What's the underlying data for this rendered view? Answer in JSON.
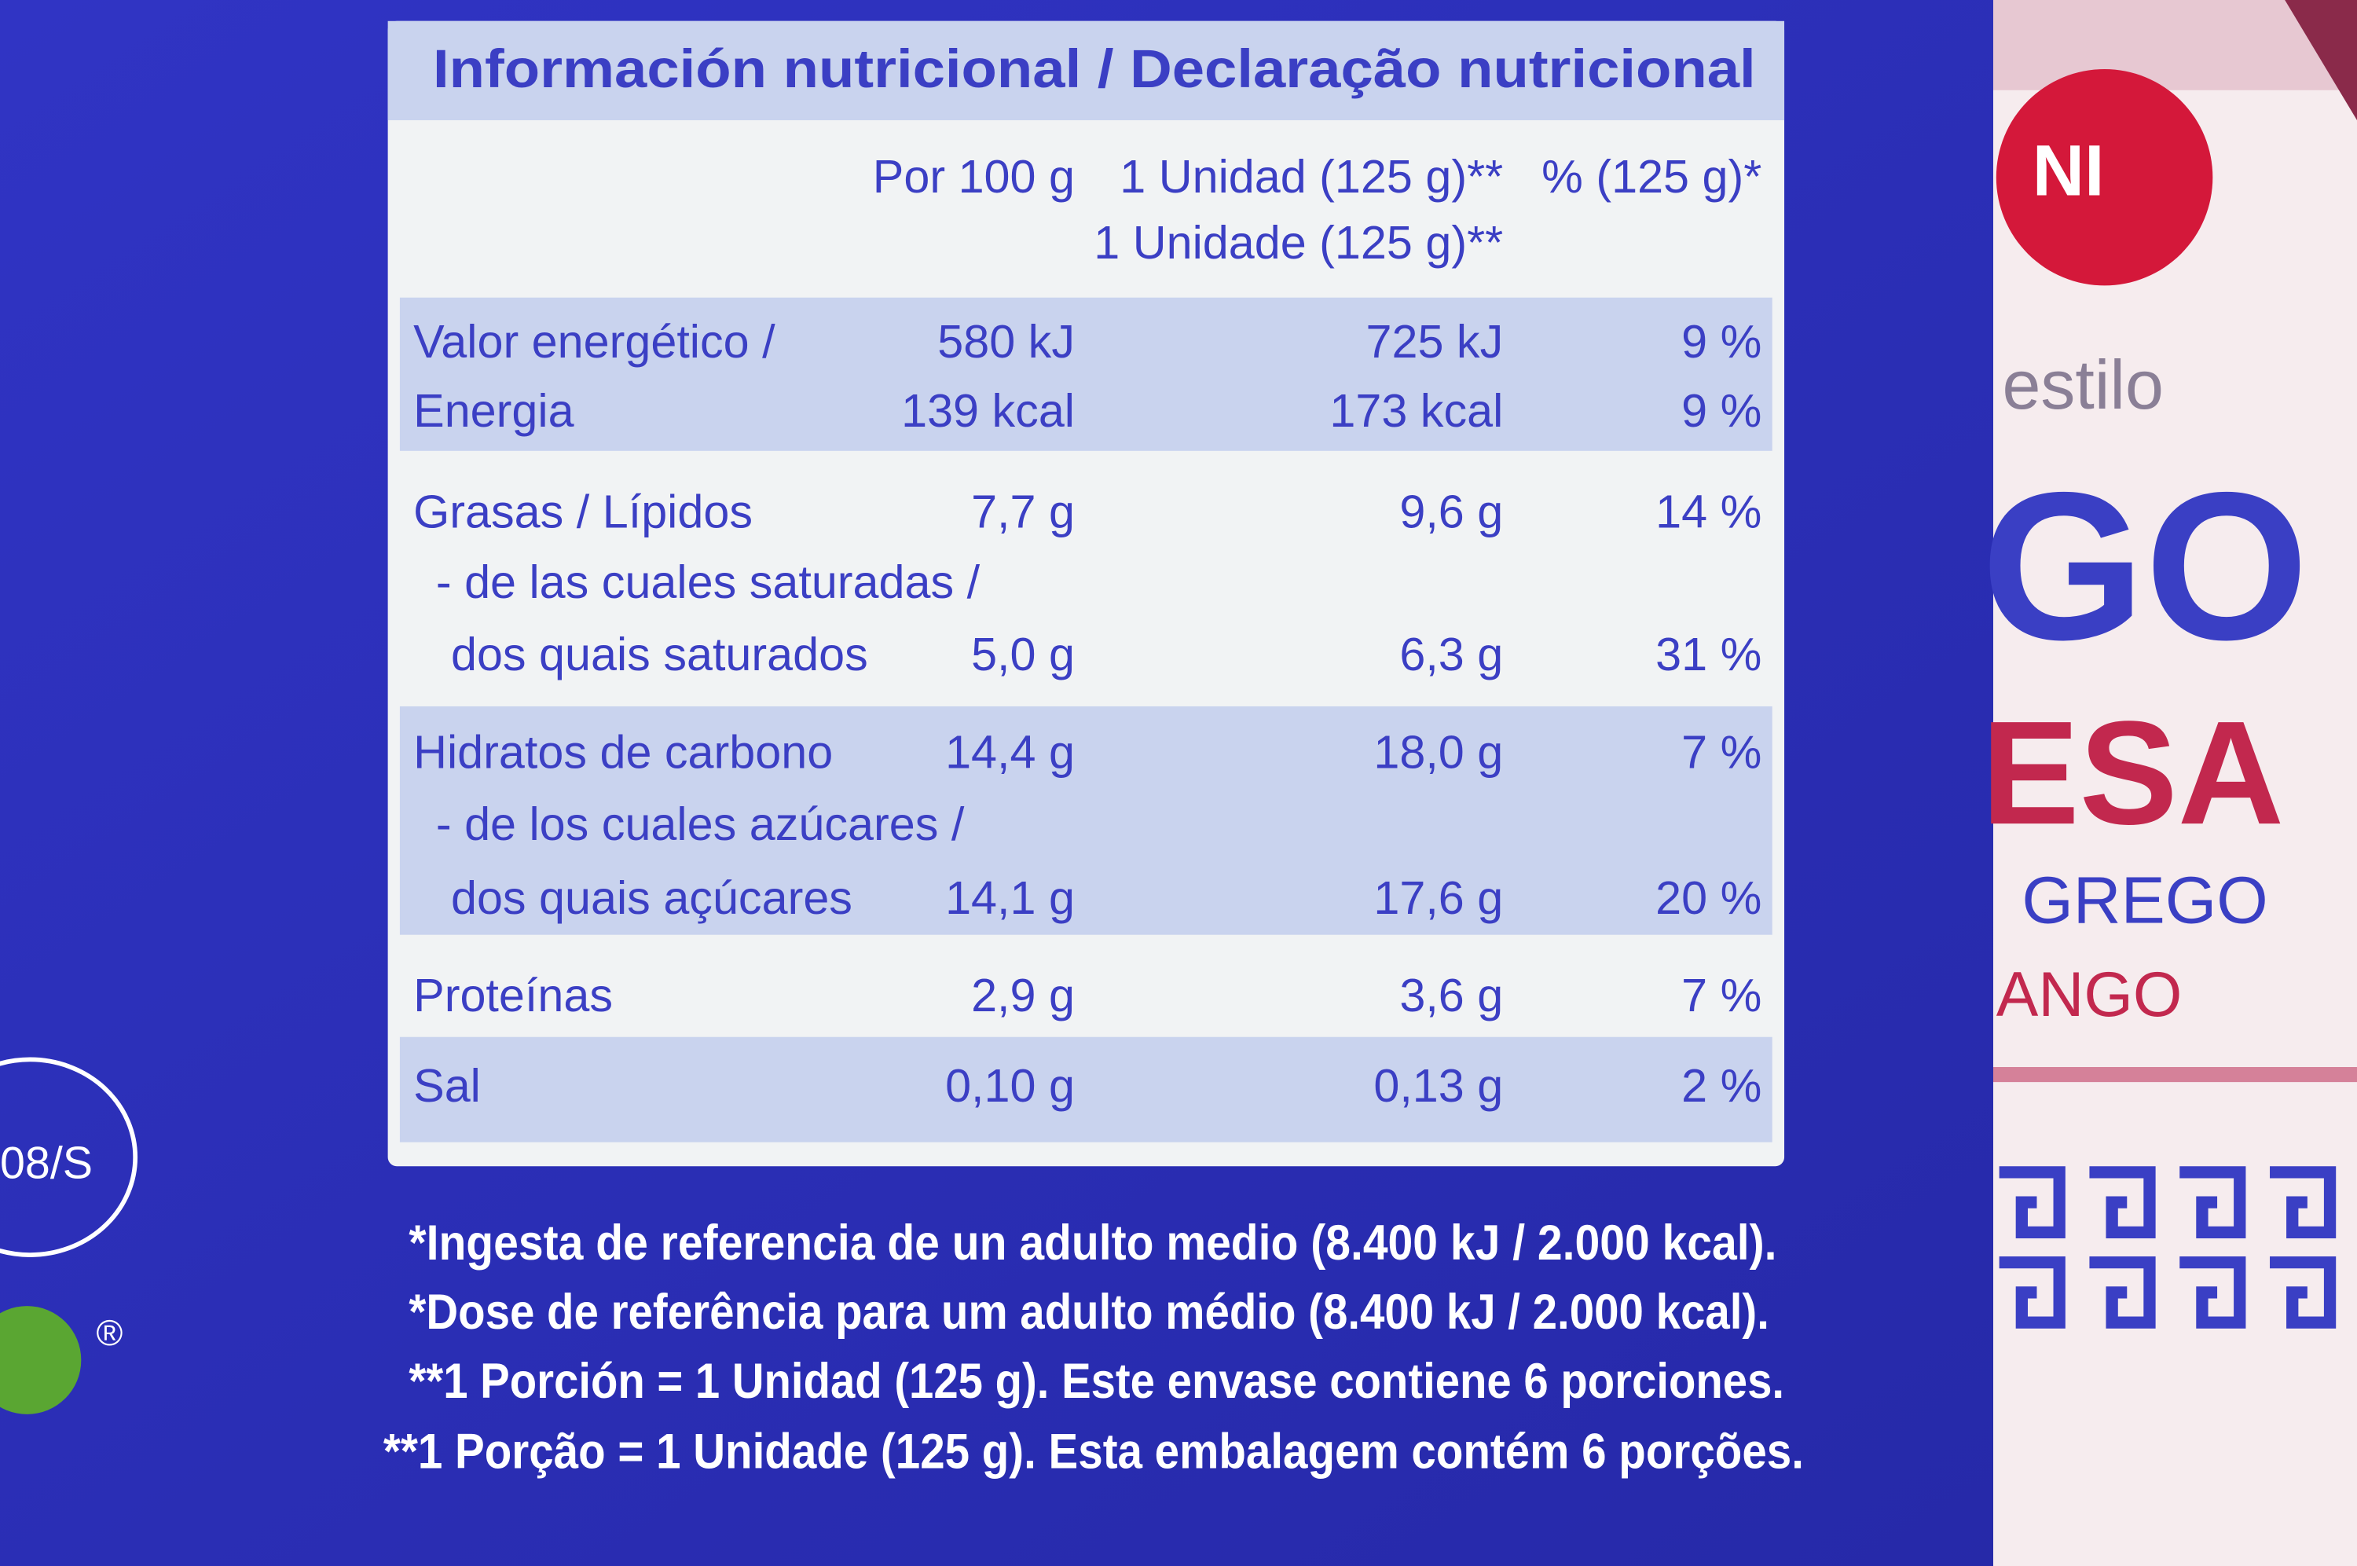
{
  "title": "Información nutricional / Declaração nutricional",
  "table": {
    "columns": [
      "Por 100 g",
      "1 Unidad (125 g)**",
      "% (125 g)*"
    ],
    "column_alt": "1 Unidade (125 g)**",
    "rows": [
      {
        "label": "Valor energético /",
        "values": [
          "580 kJ",
          "725 kJ",
          "9 %"
        ]
      },
      {
        "label": "Energia",
        "values": [
          "139 kcal",
          "173 kcal",
          "9 %"
        ]
      },
      {
        "label": "Grasas / Lípidos",
        "values": [
          "7,7 g",
          "9,6 g",
          "14 %"
        ]
      },
      {
        "label": "- de las cuales saturadas /"
      },
      {
        "label": "dos quais saturados",
        "values": [
          "5,0 g",
          "6,3 g",
          "31 %"
        ]
      },
      {
        "label": "Hidratos de carbono",
        "values": [
          "14,4 g",
          "18,0 g",
          "7 %"
        ]
      },
      {
        "label": "- de los cuales azúcares /"
      },
      {
        "label": "dos quais açúcares",
        "values": [
          "14,1 g",
          "17,6 g",
          "20 %"
        ]
      },
      {
        "label": "Proteínas",
        "values": [
          "2,9 g",
          "3,6 g",
          "7 %"
        ]
      },
      {
        "label": "Sal",
        "values": [
          "0,10 g",
          "0,13 g",
          "2 %"
        ]
      }
    ]
  },
  "footnotes": [
    "*Ingesta de referencia de un adulto medio (8.400 kJ / 2.000 kcal).",
    "*Dose de referência para um adulto médio (8.400 kJ / 2.000 kcal).",
    "**1 Porción = 1 Unidad (125 g). Este envase contiene 6 porciones.",
    "**1 Porção = 1 Unidade (125 g). Esta embalagem contém 6 porções."
  ],
  "side": {
    "brand": "NI",
    "style": "estilo",
    "big": "GO",
    "name": "ESA",
    "sub": "GREGO",
    "flavor": "ANGO",
    "code": "08/S",
    "mark": "®"
  }
}
